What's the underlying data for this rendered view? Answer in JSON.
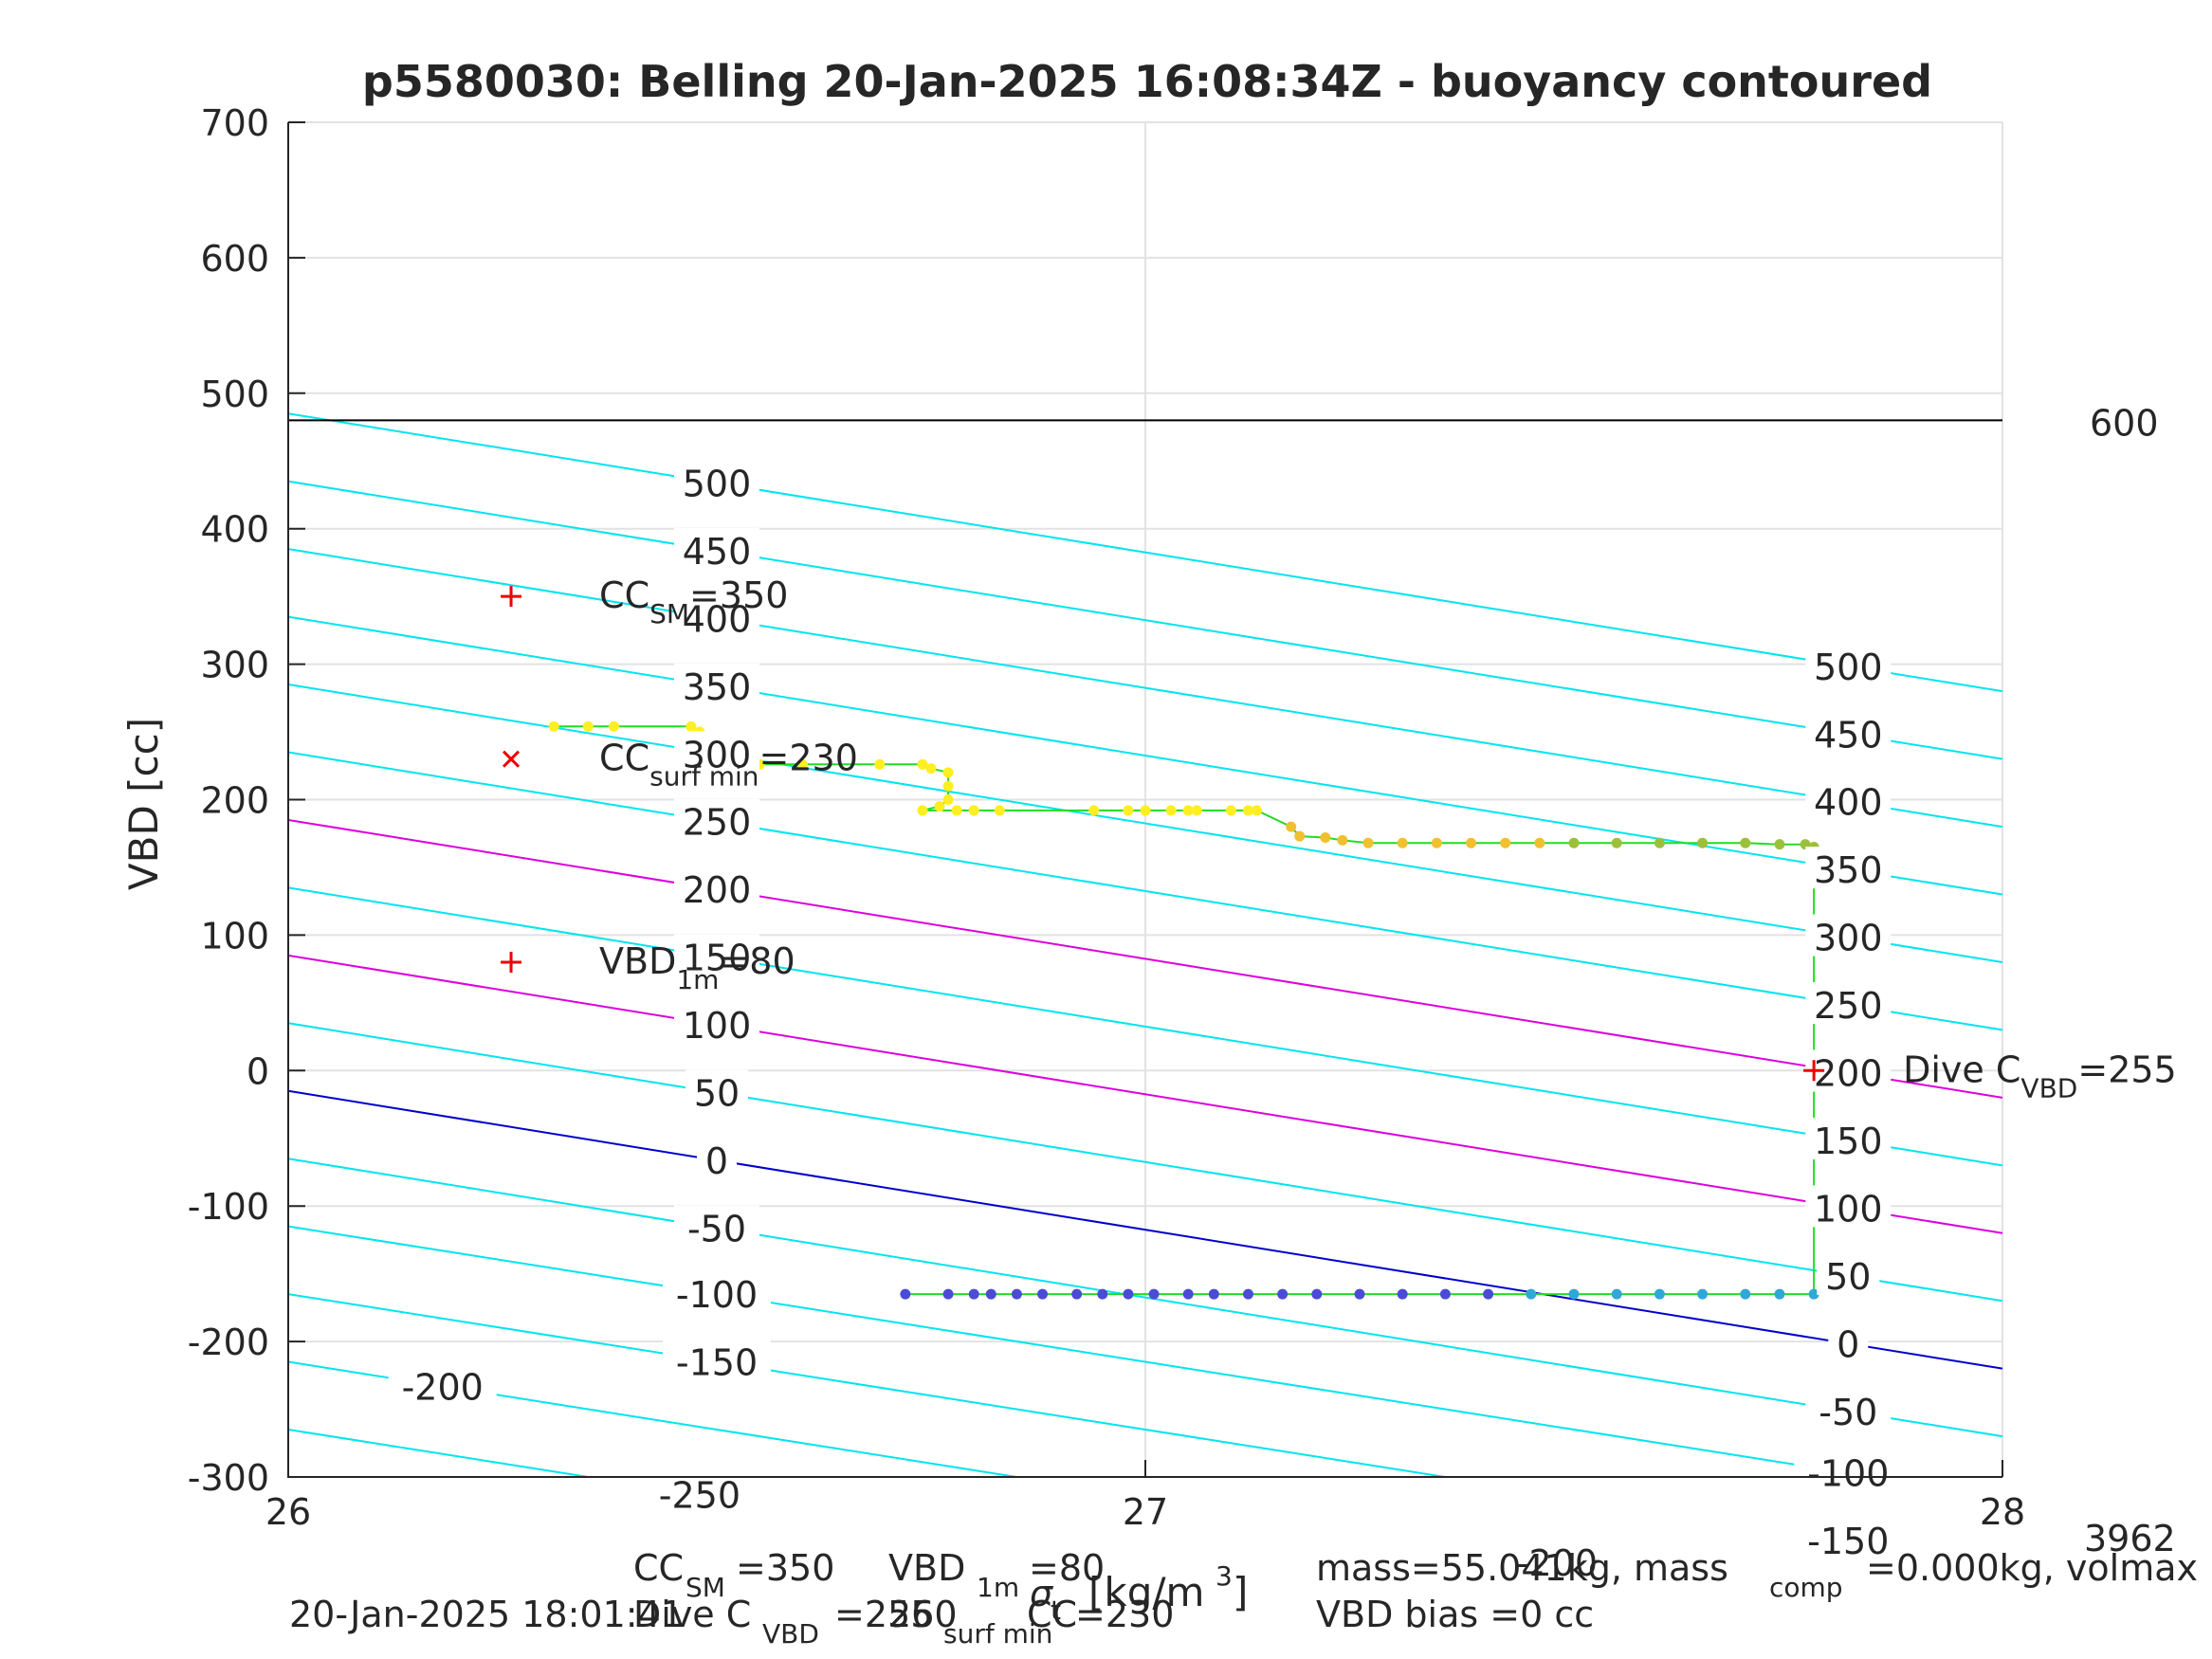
{
  "chart_data": {
    "type": "scatter",
    "title": "p5580030: Belling 20-Jan-2025 16:08:34Z - buoyancy contoured",
    "xlabel": "σt [kg/m3]",
    "xlabel_parts": {
      "sigma": "σ",
      "sub": "t",
      "unit": "[kg/m",
      "sup": "3",
      "close": "]"
    },
    "ylabel": "VBD [cc]",
    "xlim": [
      26,
      28
    ],
    "ylim": [
      -300,
      700
    ],
    "x_ticks": [
      26,
      27,
      28
    ],
    "y_ticks": [
      -300,
      -200,
      -100,
      0,
      100,
      200,
      300,
      400,
      500,
      600,
      700
    ],
    "grid": true,
    "colors": {
      "contour": "#00e5ee",
      "contour_highlight": "#dd00dd",
      "zero_line": "#0000cc",
      "hline": "#000000",
      "profile_line": "#22dd22",
      "marker": "#ee0000"
    },
    "hline": {
      "y": 480,
      "label": "600"
    },
    "right_corner_label": "3962",
    "contours": {
      "levels": [
        -250,
        -200,
        -150,
        -100,
        -50,
        0,
        50,
        100,
        150,
        200,
        250,
        300,
        350,
        400,
        450,
        500
      ],
      "y_at_x26": [
        -265,
        -215,
        -165,
        -115,
        -65,
        -15,
        35,
        85,
        135,
        185,
        235,
        285,
        335,
        385,
        435,
        485
      ],
      "y_at_x28": [
        -465,
        -415,
        -365,
        -315,
        -270,
        -220,
        -170,
        -120,
        -70,
        -20,
        30,
        80,
        130,
        180,
        230,
        280
      ],
      "zero_level": 0,
      "highlight_levels": [
        100,
        200
      ],
      "left_labels": [
        {
          "text": "500",
          "x": 26.5,
          "at_level": 500
        },
        {
          "text": "450",
          "x": 26.5,
          "at_level": 450
        },
        {
          "text": "400",
          "x": 26.5,
          "at_level": 400
        },
        {
          "text": "350",
          "x": 26.5,
          "at_level": 350
        },
        {
          "text": "300",
          "x": 26.5,
          "at_level": 300
        },
        {
          "text": "250",
          "x": 26.5,
          "at_level": 250
        },
        {
          "text": "200",
          "x": 26.5,
          "at_level": 200
        },
        {
          "text": "150",
          "x": 26.5,
          "at_level": 150
        },
        {
          "text": "100",
          "x": 26.5,
          "at_level": 100
        },
        {
          "text": "50",
          "x": 26.5,
          "at_level": 50
        },
        {
          "text": "0",
          "x": 26.5,
          "at_level": 0
        },
        {
          "text": "-50",
          "x": 26.5,
          "at_level": -50
        },
        {
          "text": "-100",
          "x": 26.5,
          "at_level": -100
        },
        {
          "text": "-150",
          "x": 26.5,
          "at_level": -150
        },
        {
          "text": "-200",
          "x": 26.18,
          "at_level": -200
        },
        {
          "text": "-250",
          "x": 26.48,
          "at_level": -250
        }
      ],
      "right_labels": [
        {
          "text": "500",
          "x": 27.82,
          "at_level": 500
        },
        {
          "text": "450",
          "x": 27.82,
          "at_level": 450
        },
        {
          "text": "400",
          "x": 27.82,
          "at_level": 400
        },
        {
          "text": "350",
          "x": 27.82,
          "at_level": 350
        },
        {
          "text": "300",
          "x": 27.82,
          "at_level": 300
        },
        {
          "text": "250",
          "x": 27.82,
          "at_level": 250
        },
        {
          "text": "200",
          "x": 27.82,
          "at_level": 200
        },
        {
          "text": "150",
          "x": 27.82,
          "at_level": 150
        },
        {
          "text": "100",
          "x": 27.82,
          "at_level": 100
        },
        {
          "text": "50",
          "x": 27.82,
          "at_level": 50
        },
        {
          "text": "0",
          "x": 27.82,
          "at_level": 0
        },
        {
          "text": "-50",
          "x": 27.82,
          "at_level": -50
        },
        {
          "text": "-100",
          "x": 27.82,
          "at_level": -100
        },
        {
          "text": "-150",
          "x": 27.82,
          "at_level": -150
        },
        {
          "text": "-200",
          "x": 27.48,
          "at_level": -200
        }
      ]
    },
    "markers": [
      {
        "kind": "plus",
        "x": 26.26,
        "y": 350,
        "label": "CC",
        "sub": "SM",
        "suffix": "=350"
      },
      {
        "kind": "cross",
        "x": 26.26,
        "y": 230,
        "label": "CC",
        "sub": "surf min",
        "suffix": "=230"
      },
      {
        "kind": "plus",
        "x": 26.26,
        "y": 80,
        "label": "VBD",
        "sub": "1m",
        "suffix": "=80"
      },
      {
        "kind": "plus",
        "x": 27.78,
        "y": 0,
        "label": "Dive C",
        "sub": "VBD",
        "suffix": "=255"
      }
    ],
    "series": [
      {
        "name": "",
        "color": "#ffee22",
        "points": [
          [
            26.31,
            254
          ],
          [
            26.35,
            254
          ],
          [
            26.38,
            254
          ],
          [
            26.47,
            254
          ],
          [
            26.48,
            250
          ],
          [
            26.49,
            240
          ],
          [
            26.5,
            226
          ],
          [
            26.55,
            226
          ],
          [
            26.6,
            226
          ],
          [
            26.69,
            226
          ],
          [
            26.74,
            226
          ],
          [
            26.75,
            223
          ],
          [
            26.77,
            220
          ],
          [
            26.77,
            210
          ],
          [
            26.77,
            200
          ],
          [
            26.76,
            195
          ],
          [
            26.74,
            192
          ],
          [
            26.78,
            192
          ],
          [
            26.8,
            192
          ],
          [
            26.83,
            192
          ],
          [
            26.94,
            192
          ],
          [
            26.98,
            192
          ],
          [
            27.0,
            192
          ],
          [
            27.03,
            192
          ],
          [
            27.05,
            192
          ],
          [
            27.06,
            192
          ],
          [
            27.1,
            192
          ],
          [
            27.12,
            192
          ],
          [
            27.13,
            192
          ]
        ]
      },
      {
        "name": "",
        "color": "#f0c030",
        "points": [
          [
            27.17,
            180
          ],
          [
            27.18,
            173
          ],
          [
            27.21,
            172
          ],
          [
            27.23,
            170
          ],
          [
            27.26,
            168
          ],
          [
            27.3,
            168
          ],
          [
            27.34,
            168
          ],
          [
            27.38,
            168
          ],
          [
            27.42,
            168
          ],
          [
            27.46,
            168
          ]
        ]
      },
      {
        "name": "",
        "color": "#9cc03c",
        "points": [
          [
            27.5,
            168
          ],
          [
            27.55,
            168
          ],
          [
            27.6,
            168
          ],
          [
            27.65,
            168
          ],
          [
            27.7,
            168
          ],
          [
            27.74,
            167
          ],
          [
            27.77,
            167
          ],
          [
            27.78,
            165
          ]
        ]
      },
      {
        "name": "",
        "color": "#4b4bd8",
        "points": [
          [
            26.72,
            -165
          ],
          [
            26.77,
            -165
          ],
          [
            26.8,
            -165
          ],
          [
            26.82,
            -165
          ],
          [
            26.85,
            -165
          ],
          [
            26.88,
            -165
          ],
          [
            26.92,
            -165
          ],
          [
            26.95,
            -165
          ],
          [
            26.98,
            -165
          ],
          [
            27.01,
            -165
          ],
          [
            27.05,
            -165
          ],
          [
            27.08,
            -165
          ],
          [
            27.12,
            -165
          ],
          [
            27.16,
            -165
          ],
          [
            27.2,
            -165
          ],
          [
            27.25,
            -165
          ],
          [
            27.3,
            -165
          ],
          [
            27.35,
            -165
          ],
          [
            27.4,
            -165
          ]
        ]
      },
      {
        "name": "",
        "color": "#2fa8d8",
        "points": [
          [
            27.45,
            -165
          ],
          [
            27.5,
            -165
          ],
          [
            27.55,
            -165
          ],
          [
            27.6,
            -165
          ],
          [
            27.65,
            -165
          ],
          [
            27.7,
            -165
          ],
          [
            27.74,
            -165
          ],
          [
            27.78,
            -165
          ]
        ]
      }
    ]
  },
  "footer": {
    "left": "20-Jan-2025 18:01:41",
    "mid_line1_a": "CC",
    "mid_line1_a_sub": "SM",
    "mid_line1_a_val": "=350",
    "mid_line1_b": "VBD",
    "mid_line1_b_sub": "1m",
    "mid_line1_b_val": "=80",
    "mid_line2_a": "Dive C",
    "mid_line2_a_sub": "VBD",
    "mid_line2_a_val": "=255",
    "mid_line2_b": "CC",
    "mid_line2_b_sub": "surf min",
    "mid_line2_b_val": "=230",
    "overlap_value": "260",
    "right_line1": "mass=55.041kg, mass",
    "right_line1_sub": "comp",
    "right_line1_rest": "=0.000kg, volmax",
    "right_line2": "VBD bias =0 cc"
  }
}
